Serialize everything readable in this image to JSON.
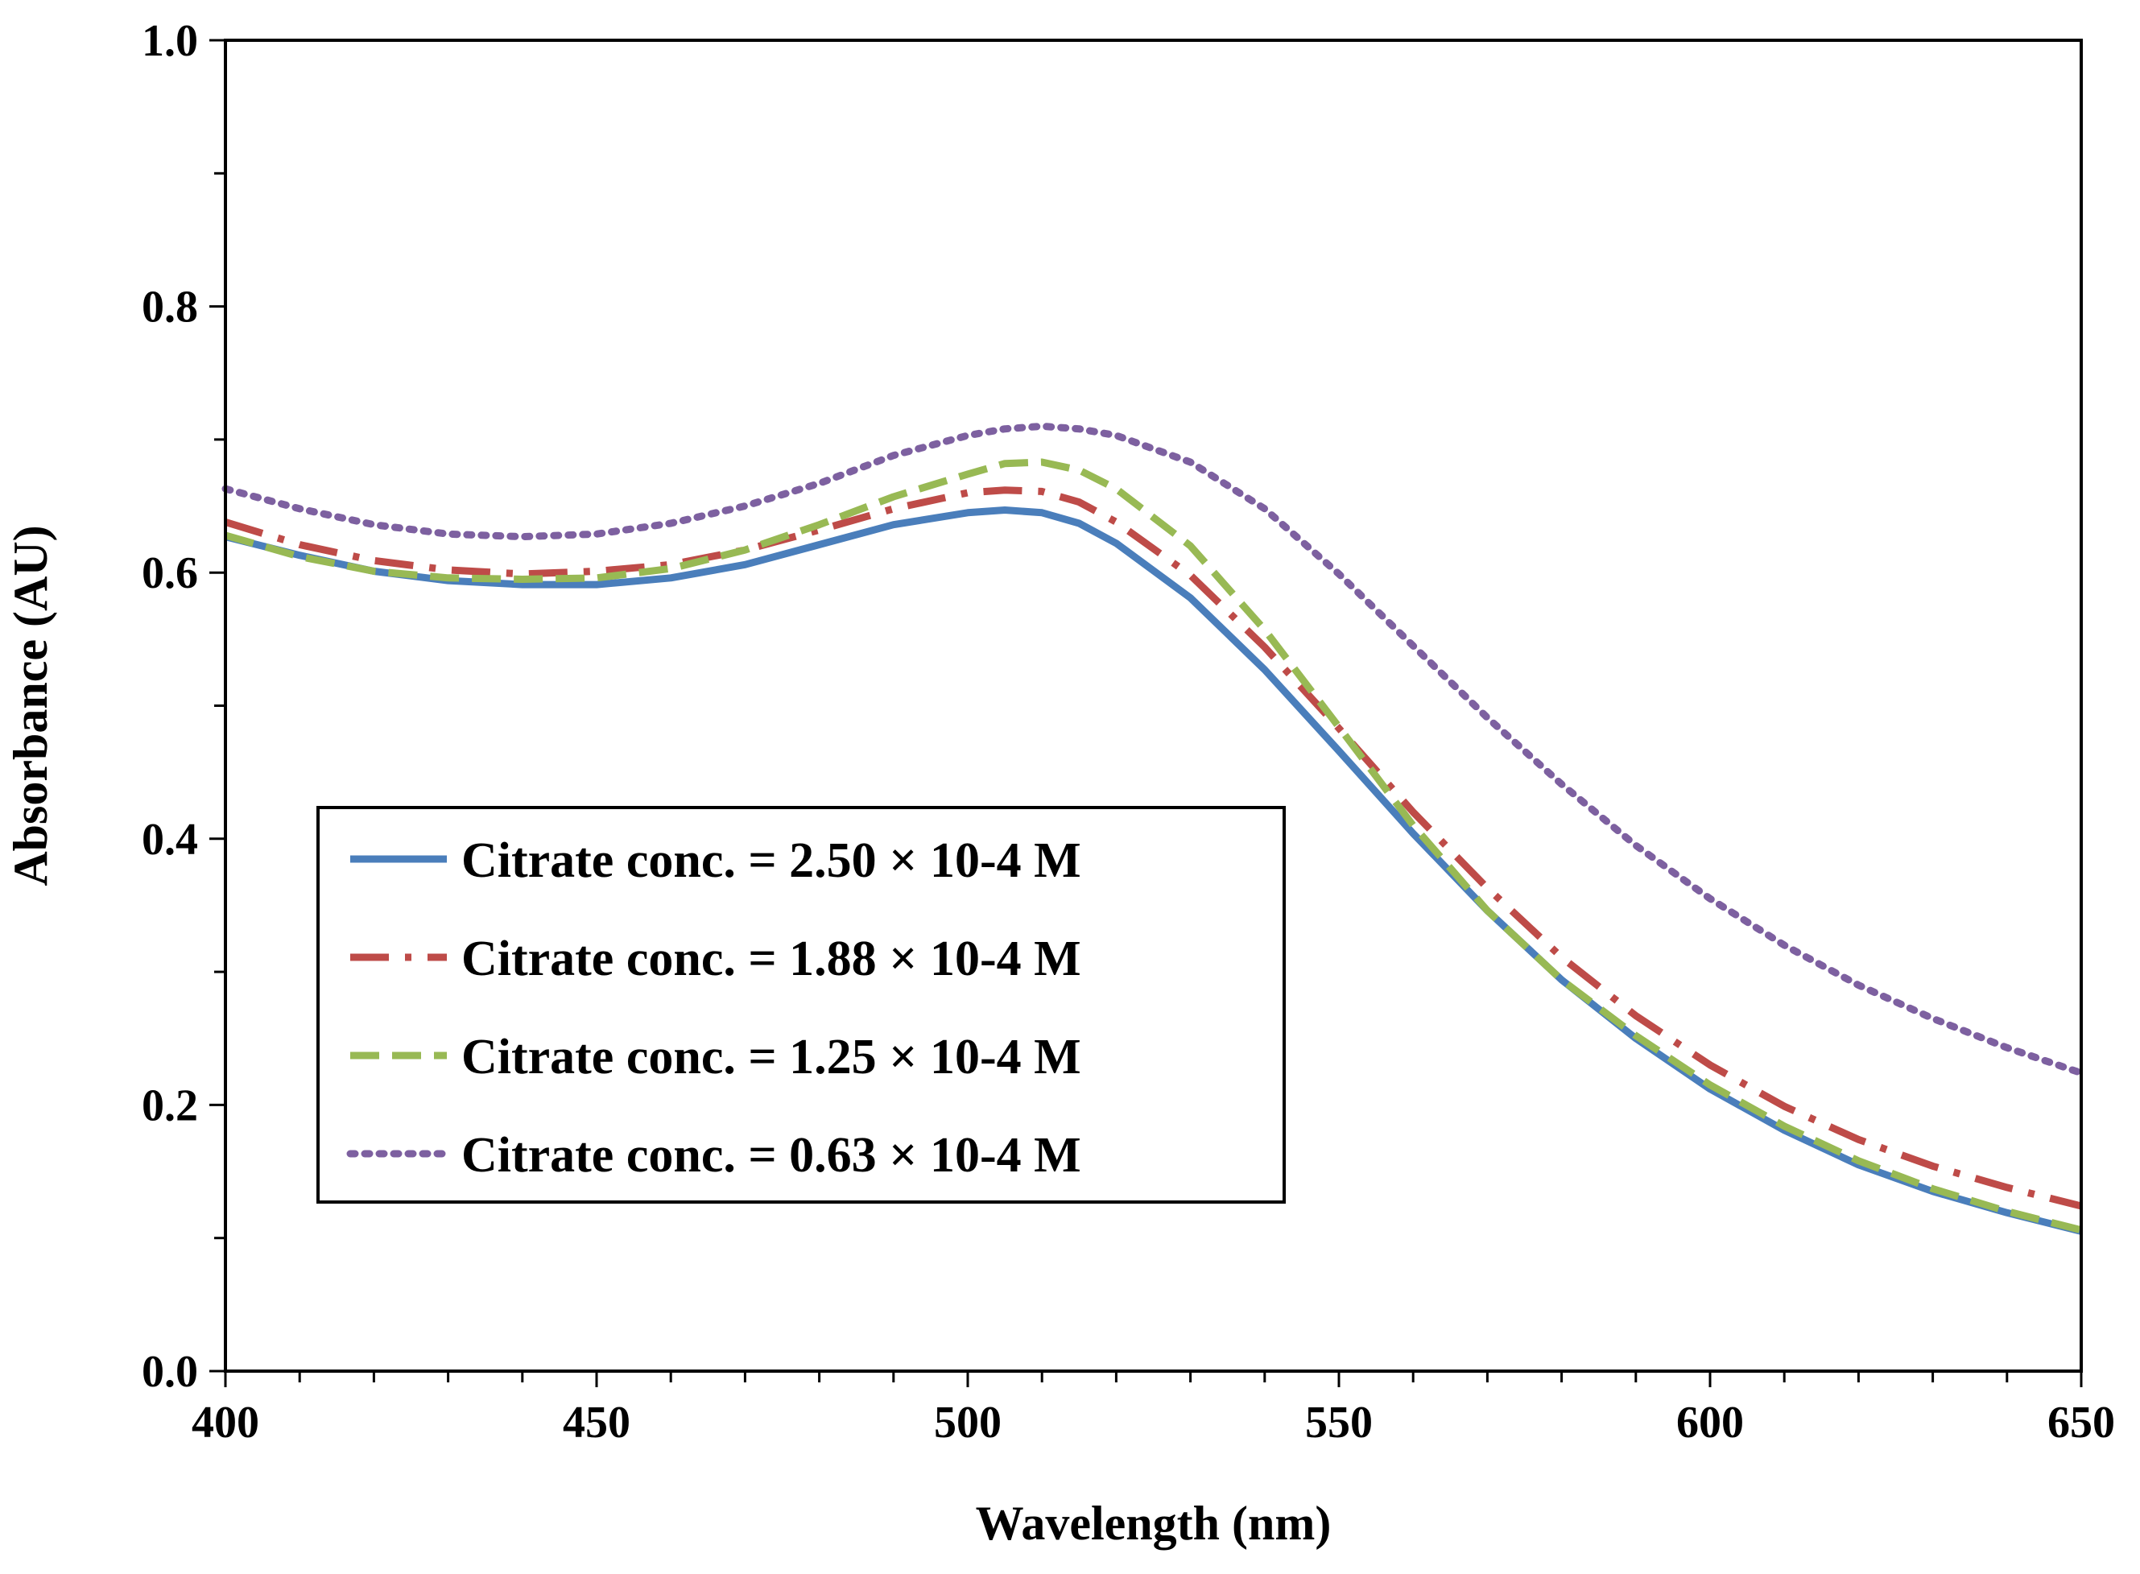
{
  "chart_data": {
    "type": "line",
    "title": "",
    "xlabel": "Wavelength (nm)",
    "ylabel": "Absorbance (AU)",
    "xlim": [
      400,
      650
    ],
    "ylim": [
      0.0,
      1.0
    ],
    "x_major_ticks": [
      400,
      450,
      500,
      550,
      600,
      650
    ],
    "x_major_tick_labels": [
      "400",
      "450",
      "500",
      "550",
      "600",
      "650"
    ],
    "x_minor_step": 10,
    "y_major_ticks": [
      0.0,
      0.2,
      0.4,
      0.6,
      0.8,
      1.0
    ],
    "y_major_tick_labels": [
      "0.0",
      "0.2",
      "0.4",
      "0.6",
      "0.8",
      "1.0"
    ],
    "y_minor_step": 0.1,
    "grid": false,
    "legend_position": "lower-left",
    "x": [
      400,
      410,
      420,
      430,
      440,
      450,
      460,
      470,
      480,
      490,
      500,
      505,
      510,
      515,
      520,
      530,
      540,
      550,
      560,
      570,
      580,
      590,
      600,
      610,
      620,
      630,
      640,
      650
    ],
    "series": [
      {
        "name": "Citrate conc. = 2.50 × 10-4 M",
        "color": "#4a7ebb",
        "style": "solid",
        "values": [
          0.627,
          0.613,
          0.601,
          0.594,
          0.591,
          0.591,
          0.596,
          0.606,
          0.621,
          0.636,
          0.645,
          0.647,
          0.645,
          0.637,
          0.622,
          0.581,
          0.527,
          0.466,
          0.404,
          0.346,
          0.294,
          0.25,
          0.212,
          0.181,
          0.155,
          0.135,
          0.119,
          0.105
        ]
      },
      {
        "name": "Citrate conc. = 1.88 × 10-4 M",
        "color": "#be4b48",
        "style": "dashdot",
        "values": [
          0.638,
          0.621,
          0.609,
          0.602,
          0.599,
          0.601,
          0.606,
          0.617,
          0.632,
          0.648,
          0.66,
          0.662,
          0.661,
          0.653,
          0.638,
          0.598,
          0.544,
          0.483,
          0.42,
          0.363,
          0.311,
          0.267,
          0.23,
          0.199,
          0.174,
          0.154,
          0.138,
          0.124
        ]
      },
      {
        "name": "Citrate conc. = 1.25 × 10-4 M",
        "color": "#98b954",
        "style": "dashed",
        "values": [
          0.628,
          0.612,
          0.601,
          0.596,
          0.595,
          0.596,
          0.603,
          0.617,
          0.636,
          0.657,
          0.674,
          0.682,
          0.683,
          0.677,
          0.663,
          0.62,
          0.557,
          0.484,
          0.41,
          0.346,
          0.294,
          0.252,
          0.215,
          0.184,
          0.158,
          0.137,
          0.12,
          0.106
        ]
      },
      {
        "name": "Citrate conc. = 0.63 × 10-4 M",
        "color": "#7d60a0",
        "style": "dotted",
        "values": [
          0.663,
          0.648,
          0.636,
          0.629,
          0.627,
          0.629,
          0.637,
          0.65,
          0.667,
          0.688,
          0.703,
          0.708,
          0.71,
          0.708,
          0.703,
          0.683,
          0.648,
          0.599,
          0.545,
          0.491,
          0.441,
          0.395,
          0.355,
          0.32,
          0.29,
          0.265,
          0.243,
          0.224
        ]
      }
    ]
  }
}
